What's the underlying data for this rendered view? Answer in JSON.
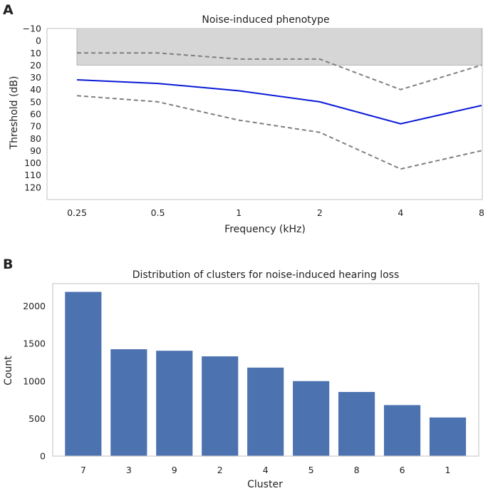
{
  "panels": {
    "a": {
      "letter": "A"
    },
    "b": {
      "letter": "B"
    }
  },
  "chart_data": [
    {
      "type": "line",
      "title": "Noise-induced phenotype",
      "xlabel": "Frequency (kHz)",
      "ylabel": "Threshold (dB)",
      "x": [
        "0.25",
        "0.5",
        "1",
        "2",
        "4",
        "8"
      ],
      "ylim": [
        -10,
        130
      ],
      "y_inverted": true,
      "yticks": [
        -10,
        0,
        10,
        20,
        30,
        40,
        50,
        60,
        70,
        80,
        90,
        100,
        110,
        120
      ],
      "ytick_labels": [
        "−10",
        "0",
        "10",
        "20",
        "30",
        "40",
        "50",
        "60",
        "70",
        "80",
        "90",
        "100",
        "110",
        "120"
      ],
      "normal_hearing_band": [
        -10,
        20
      ],
      "band_color": "#d6d6d6",
      "grid": false,
      "series": [
        {
          "role": "median",
          "style": "solid",
          "color": "#0b1ad6",
          "values": [
            32,
            35,
            41,
            50,
            68,
            53
          ]
        },
        {
          "role": "upper-bound",
          "style": "dashed",
          "color": "#7f7f7f",
          "values": [
            10,
            10,
            15,
            15,
            40,
            20
          ]
        },
        {
          "role": "lower-bound",
          "style": "dashed",
          "color": "#7f7f7f",
          "values": [
            45,
            50,
            65,
            75,
            105,
            90
          ]
        }
      ]
    },
    {
      "type": "bar",
      "title": "Distribution of clusters for noise-induced hearing loss",
      "xlabel": "Cluster",
      "ylabel": "Count",
      "categories": [
        "7",
        "3",
        "9",
        "2",
        "4",
        "5",
        "8",
        "6",
        "1"
      ],
      "values": [
        2190,
        1425,
        1405,
        1330,
        1180,
        1000,
        855,
        680,
        515
      ],
      "ylim": [
        0,
        2300
      ],
      "yticks": [
        0,
        500,
        1000,
        1500,
        2000
      ],
      "bar_color": "#4c72b0",
      "grid": false
    }
  ]
}
